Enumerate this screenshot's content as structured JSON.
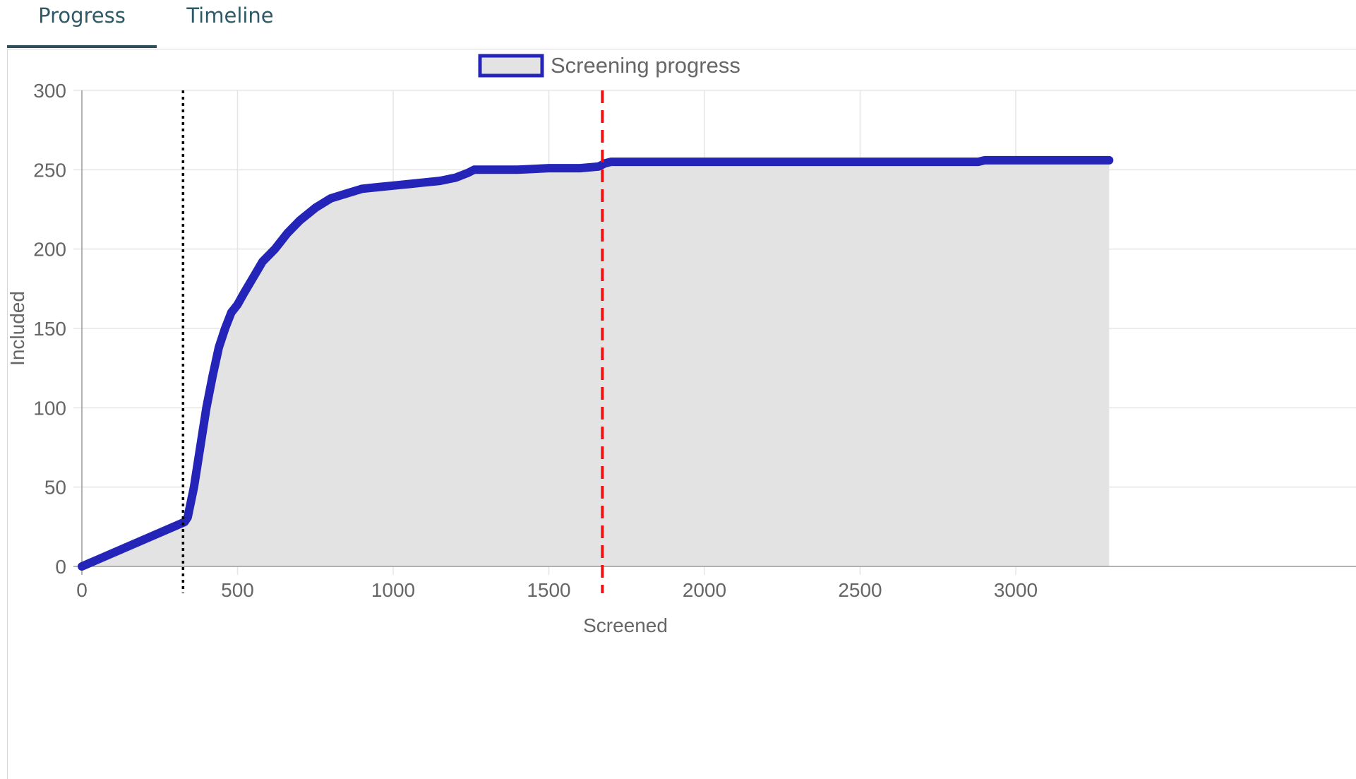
{
  "tabs": [
    {
      "label": "Progress",
      "active": true
    },
    {
      "label": "Timeline",
      "active": false
    }
  ],
  "colors": {
    "line": "#2424b8",
    "fill": "#e3e3e3",
    "grid": "#e5e5e5",
    "axis": "#999999",
    "tab_text": "#2f5967",
    "marker_dotted": "#000000",
    "marker_dashed": "#ee1111"
  },
  "chart_data": {
    "type": "area",
    "legend": {
      "label": "Screening progress",
      "position": "top-center"
    },
    "xlabel": "Screened",
    "ylabel": "Included",
    "xlim": [
      0,
      3300
    ],
    "ylim": [
      0,
      300
    ],
    "x_ticks": [
      0,
      500,
      1000,
      1500,
      2000,
      2500,
      3000
    ],
    "y_ticks": [
      0,
      50,
      100,
      150,
      200,
      250,
      300
    ],
    "grid": true,
    "series": [
      {
        "name": "Screening progress",
        "x": [
          0,
          330,
          340,
          360,
          380,
          400,
          420,
          440,
          460,
          480,
          500,
          520,
          550,
          580,
          620,
          660,
          700,
          750,
          800,
          850,
          900,
          950,
          1000,
          1050,
          1100,
          1150,
          1200,
          1240,
          1260,
          1300,
          1400,
          1500,
          1600,
          1660,
          1680,
          1700,
          2000,
          2500,
          2880,
          2900,
          3300
        ],
        "y": [
          0,
          28,
          31,
          50,
          75,
          100,
          120,
          138,
          150,
          160,
          165,
          172,
          182,
          192,
          200,
          210,
          218,
          226,
          232,
          235,
          238,
          239,
          240,
          241,
          242,
          243,
          245,
          248,
          250,
          250,
          250,
          251,
          251,
          252,
          254,
          255,
          255,
          255,
          255,
          256,
          256
        ]
      }
    ],
    "reference_lines": [
      {
        "x": 325,
        "style": "dotted"
      },
      {
        "x": 1672,
        "style": "dashed"
      }
    ]
  }
}
